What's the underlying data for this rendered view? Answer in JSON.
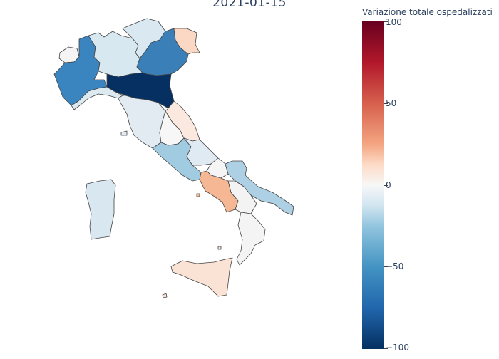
{
  "title": "2021-01-15",
  "colorbar": {
    "title": "Variazione totale ospedalizzati",
    "ticks": [
      "100",
      "50",
      "0",
      "−50",
      "−100"
    ],
    "range": [
      -100,
      100
    ],
    "colorscale": "RdBu_r"
  },
  "regions": [
    {
      "name": "Valle d'Aosta",
      "value": -2,
      "color": "#f4f4f4"
    },
    {
      "name": "Piemonte",
      "value": -72,
      "color": "#3a85bf"
    },
    {
      "name": "Lombardia",
      "value": -20,
      "color": "#d8e8f1"
    },
    {
      "name": "Trentino-Alto Adige",
      "value": -20,
      "color": "#d9e8f1"
    },
    {
      "name": "Veneto",
      "value": -75,
      "color": "#3a7fb8"
    },
    {
      "name": "Friuli-Venezia Giulia",
      "value": 20,
      "color": "#fbd8c4"
    },
    {
      "name": "Liguria",
      "value": -18,
      "color": "#dde9f1"
    },
    {
      "name": "Emilia-Romagna",
      "value": -100,
      "color": "#053061"
    },
    {
      "name": "Toscana",
      "value": -12,
      "color": "#e2ebf1"
    },
    {
      "name": "Marche",
      "value": 10,
      "color": "#fbe9df"
    },
    {
      "name": "Umbria",
      "value": 0,
      "color": "#f7f7f7"
    },
    {
      "name": "Lazio",
      "value": -45,
      "color": "#a1cbe1"
    },
    {
      "name": "Abruzzo",
      "value": -15,
      "color": "#e0eaf2"
    },
    {
      "name": "Molise",
      "value": 0,
      "color": "#f5f5f5"
    },
    {
      "name": "Campania",
      "value": 30,
      "color": "#f6b894"
    },
    {
      "name": "Puglia",
      "value": -40,
      "color": "#aed0e5"
    },
    {
      "name": "Basilicata",
      "value": 0,
      "color": "#f3f3f3"
    },
    {
      "name": "Calabria",
      "value": -2,
      "color": "#f4f4f4"
    },
    {
      "name": "Sicilia",
      "value": 12,
      "color": "#fae2d4"
    },
    {
      "name": "Sardegna",
      "value": -22,
      "color": "#d8e7f0"
    }
  ]
}
